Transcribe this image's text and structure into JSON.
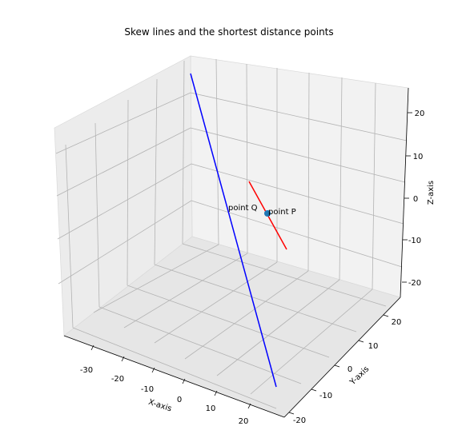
{
  "chart_data": {
    "type": "line",
    "projection": "3d",
    "title": "Skew lines and the shortest distance points",
    "xlabel": "X-axis",
    "ylabel": "Y-axis",
    "zlabel": "Z-axis",
    "xlim": [
      -35,
      28
    ],
    "ylim": [
      -22,
      23
    ],
    "zlim": [
      -25,
      25
    ],
    "xticks": [
      -30,
      -20,
      -10,
      0,
      10,
      20
    ],
    "yticks": [
      -20,
      -10,
      0,
      10,
      20
    ],
    "zticks": [
      -20,
      -10,
      0,
      10,
      20
    ],
    "grid": true,
    "series": [
      {
        "style": "line",
        "color": "#0000ff",
        "x": [
          -30,
          25
        ],
        "y": [
          -20,
          20
        ],
        "z": [
          35,
          -25
        ]
      },
      {
        "style": "line",
        "color": "#ff0000",
        "x": [
          -5,
          5
        ],
        "y": [
          -5,
          5
        ],
        "z": [
          5,
          -10
        ]
      }
    ],
    "points": [
      {
        "label": "point P",
        "x": 0,
        "y": 0,
        "z": -2.5,
        "color": "#1f77b4"
      },
      {
        "label": "point Q",
        "x": -3,
        "y": 1.5,
        "z": 1
      }
    ]
  }
}
